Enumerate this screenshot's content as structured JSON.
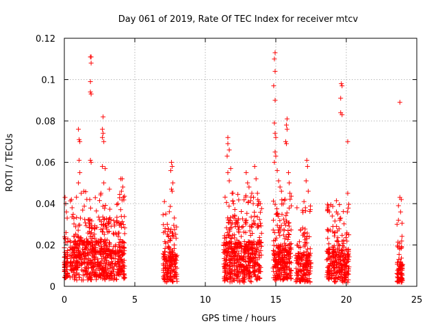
{
  "chart_data": {
    "type": "scatter",
    "title": "Day 061 of 2019, Rate Of TEC Index for receiver mtcv",
    "xlabel": "GPS time / hours",
    "ylabel": "ROTI / TECUs",
    "xlim": [
      0,
      25
    ],
    "ylim": [
      0,
      0.12
    ],
    "grid": true,
    "xticks": [
      0,
      5,
      10,
      15,
      20,
      25
    ],
    "xtick_labels": [
      "0",
      "5",
      "10",
      "15",
      "20",
      "25"
    ],
    "yticks": [
      0,
      0.02,
      0.04,
      0.06,
      0.08,
      0.1,
      0.12
    ],
    "ytick_labels": [
      "0",
      "0.02",
      "0.04",
      "0.06",
      "0.08",
      "0.1",
      "0.12"
    ],
    "marker": "+",
    "color": "#ff0000",
    "series": [
      {
        "name": "ROTI",
        "clusters": [
          {
            "x_range": [
              0.0,
              0.25
            ],
            "y_base": [
              0.004,
              0.016
            ],
            "n": 60
          },
          {
            "x_range": [
              0.4,
              4.3
            ],
            "y_base": [
              0.003,
              0.022
            ],
            "n": 700
          },
          {
            "x_range": [
              7.0,
              8.0
            ],
            "y_base": [
              0.002,
              0.016
            ],
            "n": 180
          },
          {
            "x_range": [
              11.3,
              14.0
            ],
            "y_base": [
              0.002,
              0.022
            ],
            "n": 520
          },
          {
            "x_range": [
              14.8,
              16.1
            ],
            "y_base": [
              0.003,
              0.02
            ],
            "n": 260
          },
          {
            "x_range": [
              16.4,
              17.5
            ],
            "y_base": [
              0.002,
              0.016
            ],
            "n": 180
          },
          {
            "x_range": [
              18.6,
              20.2
            ],
            "y_base": [
              0.002,
              0.018
            ],
            "n": 280
          },
          {
            "x_range": [
              23.6,
              24.0
            ],
            "y_base": [
              0.002,
              0.012
            ],
            "n": 80
          }
        ],
        "outliers": [
          [
            0.05,
            0.043
          ],
          [
            0.1,
            0.04
          ],
          [
            0.15,
            0.036
          ],
          [
            0.2,
            0.033
          ],
          [
            0.12,
            0.026
          ],
          [
            0.5,
            0.042
          ],
          [
            0.55,
            0.038
          ],
          [
            1.0,
            0.076
          ],
          [
            1.05,
            0.071
          ],
          [
            1.1,
            0.07
          ],
          [
            1.05,
            0.061
          ],
          [
            1.1,
            0.055
          ],
          [
            1.0,
            0.05
          ],
          [
            1.2,
            0.045
          ],
          [
            1.85,
            0.111
          ],
          [
            1.9,
            0.111
          ],
          [
            1.9,
            0.108
          ],
          [
            1.85,
            0.099
          ],
          [
            1.85,
            0.094
          ],
          [
            1.9,
            0.093
          ],
          [
            1.85,
            0.061
          ],
          [
            1.9,
            0.06
          ],
          [
            1.8,
            0.042
          ],
          [
            2.75,
            0.082
          ],
          [
            2.7,
            0.076
          ],
          [
            2.75,
            0.074
          ],
          [
            2.7,
            0.072
          ],
          [
            2.8,
            0.07
          ],
          [
            2.7,
            0.058
          ],
          [
            2.9,
            0.057
          ],
          [
            2.8,
            0.05
          ],
          [
            2.6,
            0.045
          ],
          [
            3.2,
            0.047
          ],
          [
            3.8,
            0.04
          ],
          [
            4.0,
            0.052
          ],
          [
            4.1,
            0.052
          ],
          [
            4.05,
            0.046
          ],
          [
            4.15,
            0.048
          ],
          [
            4.2,
            0.043
          ],
          [
            7.1,
            0.041
          ],
          [
            7.2,
            0.035
          ],
          [
            7.3,
            0.03
          ],
          [
            7.6,
            0.06
          ],
          [
            7.65,
            0.058
          ],
          [
            7.55,
            0.056
          ],
          [
            7.7,
            0.05
          ],
          [
            7.6,
            0.047
          ],
          [
            7.65,
            0.046
          ],
          [
            11.6,
            0.072
          ],
          [
            11.6,
            0.069
          ],
          [
            11.7,
            0.066
          ],
          [
            11.55,
            0.063
          ],
          [
            11.8,
            0.057
          ],
          [
            11.6,
            0.055
          ],
          [
            11.7,
            0.051
          ],
          [
            11.9,
            0.045
          ],
          [
            12.0,
            0.04
          ],
          [
            12.9,
            0.055
          ],
          [
            13.0,
            0.05
          ],
          [
            13.1,
            0.048
          ],
          [
            13.3,
            0.045
          ],
          [
            13.5,
            0.058
          ],
          [
            13.6,
            0.052
          ],
          [
            13.7,
            0.045
          ],
          [
            13.8,
            0.041
          ],
          [
            13.9,
            0.04
          ],
          [
            13.4,
            0.04
          ],
          [
            14.95,
            0.113
          ],
          [
            14.9,
            0.11
          ],
          [
            14.95,
            0.104
          ],
          [
            14.85,
            0.097
          ],
          [
            14.95,
            0.09
          ],
          [
            14.9,
            0.079
          ],
          [
            14.95,
            0.074
          ],
          [
            15.0,
            0.072
          ],
          [
            14.95,
            0.065
          ],
          [
            15.0,
            0.063
          ],
          [
            14.9,
            0.06
          ],
          [
            15.1,
            0.056
          ],
          [
            15.2,
            0.051
          ],
          [
            15.3,
            0.048
          ],
          [
            15.4,
            0.046
          ],
          [
            15.8,
            0.081
          ],
          [
            15.75,
            0.078
          ],
          [
            15.8,
            0.076
          ],
          [
            15.7,
            0.07
          ],
          [
            15.75,
            0.069
          ],
          [
            15.9,
            0.055
          ],
          [
            15.95,
            0.05
          ],
          [
            16.0,
            0.045
          ],
          [
            16.5,
            0.038
          ],
          [
            17.0,
            0.041
          ],
          [
            17.2,
            0.061
          ],
          [
            17.25,
            0.058
          ],
          [
            17.15,
            0.051
          ],
          [
            17.3,
            0.046
          ],
          [
            17.1,
            0.038
          ],
          [
            18.7,
            0.038
          ],
          [
            18.8,
            0.036
          ],
          [
            19.0,
            0.034
          ],
          [
            19.3,
            0.036
          ],
          [
            19.4,
            0.035
          ],
          [
            19.6,
            0.033
          ],
          [
            19.55,
            0.032
          ],
          [
            19.65,
            0.098
          ],
          [
            19.7,
            0.097
          ],
          [
            19.6,
            0.091
          ],
          [
            19.6,
            0.084
          ],
          [
            19.7,
            0.083
          ],
          [
            20.1,
            0.07
          ],
          [
            20.1,
            0.045
          ],
          [
            23.8,
            0.089
          ],
          [
            23.7,
            0.039
          ],
          [
            23.8,
            0.043
          ],
          [
            23.9,
            0.042
          ],
          [
            23.85,
            0.036
          ],
          [
            23.7,
            0.032
          ],
          [
            23.6,
            0.03
          ]
        ]
      }
    ]
  }
}
